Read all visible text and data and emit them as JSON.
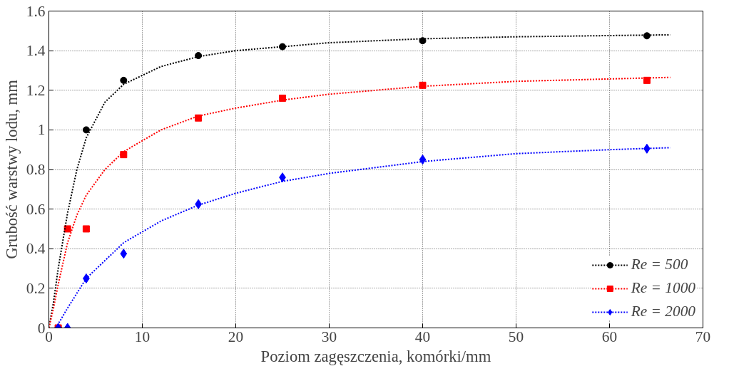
{
  "chart_data": {
    "type": "scatter",
    "xlabel": "Poziom zagęszczenia, komórki/mm",
    "ylabel": "Grubość warstwy lodu, mm",
    "xlim": [
      0,
      70
    ],
    "ylim": [
      0,
      1.6
    ],
    "xticks": [
      0,
      10,
      20,
      30,
      40,
      50,
      60,
      70
    ],
    "yticks": [
      0,
      0.2,
      0.4,
      0.6,
      0.8,
      1,
      1.2,
      1.4,
      1.6
    ],
    "grid": true,
    "legend": "bottom right",
    "series": [
      {
        "name": "Re = 500",
        "marker": "circle",
        "color": "#000000",
        "x": [
          1,
          4,
          8,
          16,
          25,
          40,
          64
        ],
        "values": [
          0,
          1.0,
          1.25,
          1.375,
          1.42,
          1.45,
          1.475
        ]
      },
      {
        "name": "Re = 1000",
        "marker": "square",
        "color": "#ff0000",
        "x": [
          1,
          2,
          4,
          8,
          16,
          25,
          40,
          64
        ],
        "values": [
          0,
          0.5,
          0.5,
          0.875,
          1.06,
          1.16,
          1.225,
          1.25
        ]
      },
      {
        "name": "Re = 2000",
        "marker": "diamond",
        "color": "#0000ff",
        "x": [
          1,
          2,
          4,
          8,
          16,
          25,
          40,
          64
        ],
        "values": [
          0,
          0,
          0.25,
          0.375,
          0.625,
          0.76,
          0.85,
          0.905
        ]
      },
      {
        "type": "line",
        "line_style": "dotted",
        "color": "#000000",
        "x": [
          0,
          0.5,
          1,
          2,
          3,
          4,
          6,
          8,
          12,
          16,
          20,
          30,
          40,
          50,
          66.5
        ],
        "values": [
          0,
          0.13,
          0.3,
          0.58,
          0.8,
          0.96,
          1.14,
          1.23,
          1.32,
          1.37,
          1.4,
          1.44,
          1.46,
          1.47,
          1.48
        ]
      },
      {
        "type": "line",
        "line_style": "dotted",
        "color": "#ff0000",
        "x": [
          0,
          0.5,
          1,
          2,
          3,
          4,
          6,
          8,
          12,
          16,
          20,
          25,
          30,
          40,
          50,
          66.5
        ],
        "values": [
          0,
          0.1,
          0.22,
          0.43,
          0.57,
          0.67,
          0.8,
          0.89,
          1.0,
          1.07,
          1.11,
          1.15,
          1.18,
          1.22,
          1.245,
          1.265
        ]
      },
      {
        "type": "line",
        "line_style": "dotted",
        "color": "#0000ff",
        "x": [
          0.8,
          1,
          2,
          4,
          8,
          12,
          16,
          20,
          25,
          30,
          40,
          50,
          60,
          66.5
        ],
        "values": [
          0,
          0.02,
          0.1,
          0.25,
          0.43,
          0.54,
          0.62,
          0.68,
          0.74,
          0.78,
          0.84,
          0.88,
          0.9,
          0.91
        ]
      }
    ]
  }
}
